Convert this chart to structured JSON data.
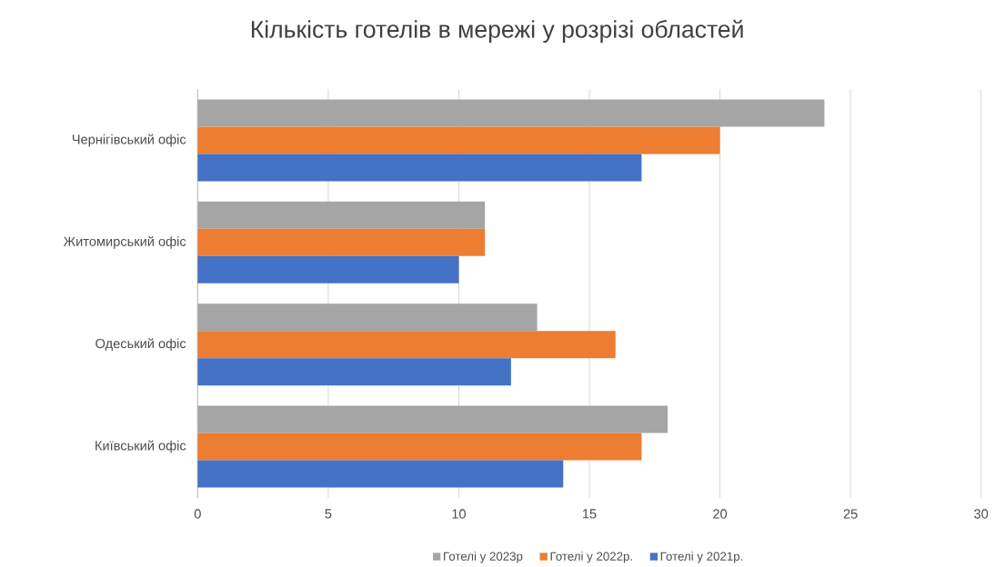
{
  "chart_data": {
    "type": "bar",
    "orientation": "horizontal",
    "title": "Кількість готелів в мережі у розрізі областей",
    "categories": [
      "Чернігівський офіс",
      "Житомирський офіс",
      "Одеський офіс",
      "Київський офіс"
    ],
    "series": [
      {
        "name": "Готелі у 2023р",
        "color": "#a5a5a5",
        "values": [
          24,
          11,
          13,
          18
        ]
      },
      {
        "name": "Готелі у 2022р.",
        "color": "#ed7d31",
        "values": [
          20,
          11,
          16,
          17
        ]
      },
      {
        "name": "Готелі у 2021р.",
        "color": "#4472c4",
        "values": [
          17,
          10,
          12,
          14
        ]
      }
    ],
    "xlim": [
      0,
      30
    ],
    "xticks": [
      0,
      5,
      10,
      15,
      20,
      25,
      30
    ],
    "grid": "x",
    "legend": "bottom"
  }
}
